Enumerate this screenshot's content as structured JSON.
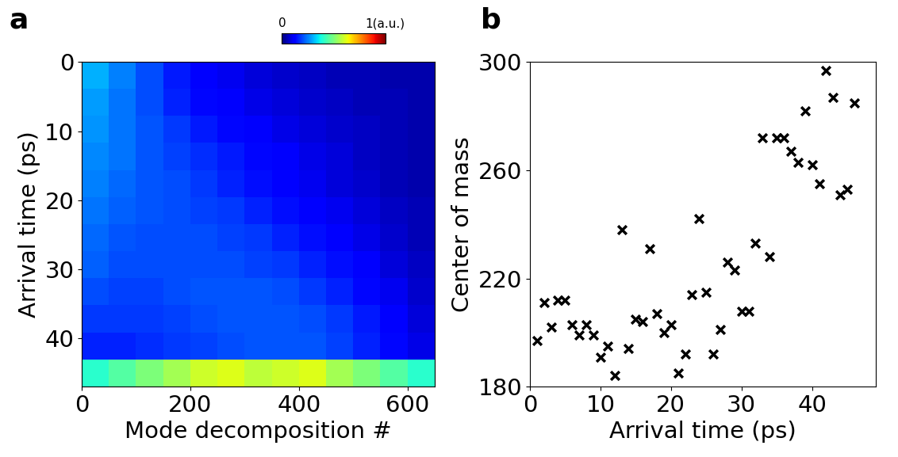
{
  "chart_data": [
    {
      "type": "heatmap",
      "panel_label": "a",
      "xlabel": "Mode decomposition #",
      "ylabel": "Arrival time (ps)",
      "xlim": [
        0,
        650
      ],
      "ylim": [
        47,
        0
      ],
      "xticks": [
        0,
        200,
        400,
        600
      ],
      "yticks": [
        0,
        10,
        20,
        30,
        40
      ],
      "cells": [
        [
          0.3,
          0.25,
          0.2,
          0.15,
          0.12,
          0.1,
          0.08,
          0.07,
          0.06,
          0.05,
          0.05,
          0.04,
          0.04
        ],
        [
          0.28,
          0.24,
          0.2,
          0.16,
          0.13,
          0.11,
          0.09,
          0.08,
          0.07,
          0.06,
          0.05,
          0.05,
          0.04
        ],
        [
          0.27,
          0.24,
          0.21,
          0.18,
          0.15,
          0.13,
          0.11,
          0.09,
          0.08,
          0.07,
          0.06,
          0.05,
          0.04
        ],
        [
          0.26,
          0.24,
          0.21,
          0.19,
          0.17,
          0.15,
          0.13,
          0.11,
          0.09,
          0.08,
          0.06,
          0.05,
          0.04
        ],
        [
          0.25,
          0.23,
          0.21,
          0.2,
          0.18,
          0.16,
          0.14,
          0.12,
          0.1,
          0.08,
          0.07,
          0.05,
          0.04
        ],
        [
          0.24,
          0.22,
          0.21,
          0.2,
          0.19,
          0.18,
          0.16,
          0.14,
          0.12,
          0.1,
          0.08,
          0.06,
          0.05
        ],
        [
          0.23,
          0.21,
          0.2,
          0.2,
          0.2,
          0.19,
          0.18,
          0.16,
          0.14,
          0.12,
          0.09,
          0.07,
          0.05
        ],
        [
          0.22,
          0.2,
          0.2,
          0.2,
          0.2,
          0.2,
          0.19,
          0.18,
          0.16,
          0.14,
          0.11,
          0.08,
          0.06
        ],
        [
          0.2,
          0.19,
          0.19,
          0.2,
          0.21,
          0.21,
          0.21,
          0.2,
          0.18,
          0.16,
          0.13,
          0.1,
          0.07
        ],
        [
          0.18,
          0.18,
          0.18,
          0.19,
          0.2,
          0.21,
          0.21,
          0.21,
          0.2,
          0.18,
          0.15,
          0.12,
          0.08
        ],
        [
          0.16,
          0.16,
          0.17,
          0.18,
          0.19,
          0.2,
          0.21,
          0.21,
          0.21,
          0.19,
          0.16,
          0.13,
          0.09
        ],
        [
          0.4,
          0.45,
          0.5,
          0.55,
          0.6,
          0.62,
          0.58,
          0.6,
          0.62,
          0.55,
          0.5,
          0.45,
          0.4
        ]
      ],
      "colorbar_range": [
        0,
        1
      ],
      "colorbar_ticks": [
        0,
        {
          "value": 1,
          "label": "1(a.u.)"
        }
      ]
    },
    {
      "type": "scatter",
      "panel_label": "b",
      "xlabel": "Arrival time (ps)",
      "ylabel": "Center of mass",
      "marker": "x",
      "color": "#000000",
      "xlim": [
        0,
        49
      ],
      "ylim": [
        180,
        300
      ],
      "xticks": [
        0,
        10,
        20,
        30,
        40
      ],
      "yticks": [
        180,
        220,
        260,
        300
      ],
      "x": [
        1,
        2,
        3,
        4,
        5,
        6,
        7,
        8,
        9,
        10,
        11,
        12,
        13,
        14,
        15,
        16,
        17,
        18,
        19,
        20,
        21,
        22,
        23,
        24,
        25,
        26,
        27,
        28,
        29,
        30,
        31,
        32,
        33,
        34,
        35,
        36,
        37,
        38,
        39,
        40,
        41,
        42,
        43,
        44,
        45,
        46
      ],
      "values": [
        197,
        211,
        202,
        212,
        212,
        203,
        199,
        203,
        199,
        191,
        195,
        184,
        238,
        194,
        205,
        204,
        231,
        207,
        200,
        203,
        185,
        192,
        214,
        242,
        215,
        192,
        201,
        226,
        223,
        208,
        208,
        233,
        272,
        228,
        272,
        272,
        267,
        263,
        282,
        262,
        255,
        297,
        287,
        251,
        253,
        285
      ]
    }
  ]
}
